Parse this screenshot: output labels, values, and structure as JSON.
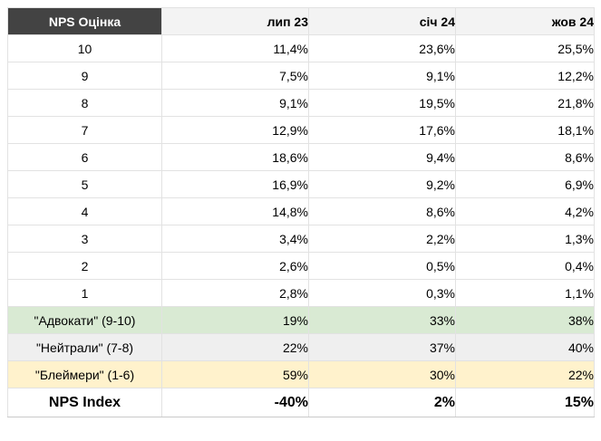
{
  "colors": {
    "corner_header_bg": "#434343",
    "corner_header_text": "#ffffff",
    "period_header_bg": "#f3f3f3",
    "advocates_row_bg": "#d9ead3",
    "neutrals_row_bg": "#efefef",
    "blamers_row_bg": "#fff2cc",
    "gridline": "#e2e2e2",
    "total_row_top_border": "#000000",
    "text": "#000000"
  },
  "chart_data": {
    "type": "table",
    "header": {
      "corner": "NPS Оцінка",
      "periods": [
        "лип 23",
        "січ 24",
        "жов 24"
      ]
    },
    "score_rows": [
      {
        "label": "10",
        "values": [
          "11,4%",
          "23,6%",
          "25,5%"
        ]
      },
      {
        "label": "9",
        "values": [
          "7,5%",
          "9,1%",
          "12,2%"
        ]
      },
      {
        "label": "8",
        "values": [
          "9,1%",
          "19,5%",
          "21,8%"
        ]
      },
      {
        "label": "7",
        "values": [
          "12,9%",
          "17,6%",
          "18,1%"
        ]
      },
      {
        "label": "6",
        "values": [
          "18,6%",
          "9,4%",
          "8,6%"
        ]
      },
      {
        "label": "5",
        "values": [
          "16,9%",
          "9,2%",
          "6,9%"
        ]
      },
      {
        "label": "4",
        "values": [
          "14,8%",
          "8,6%",
          "4,2%"
        ]
      },
      {
        "label": "3",
        "values": [
          "3,4%",
          "2,2%",
          "1,3%"
        ]
      },
      {
        "label": "2",
        "values": [
          "2,6%",
          "0,5%",
          "0,4%"
        ]
      },
      {
        "label": "1",
        "values": [
          "2,8%",
          "0,3%",
          "1,1%"
        ]
      }
    ],
    "summary_rows": [
      {
        "label": "\"Адвокати\" (9-10)",
        "values": [
          "19%",
          "33%",
          "38%"
        ]
      },
      {
        "label": "\"Нейтрали\" (7-8)",
        "values": [
          "22%",
          "37%",
          "40%"
        ]
      },
      {
        "label": "\"Блеймери\" (1-6)",
        "values": [
          "59%",
          "30%",
          "22%"
        ]
      }
    ],
    "total_row": {
      "label": "NPS Index",
      "values": [
        "-40%",
        "2%",
        "15%"
      ]
    }
  }
}
